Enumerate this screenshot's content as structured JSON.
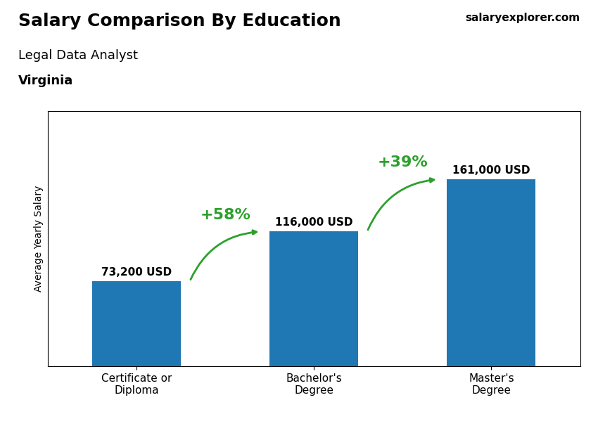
{
  "chart_data": {
    "type": "bar",
    "title": "Salary Comparison By Education",
    "subtitle": [
      "Legal Data Analyst",
      "Virginia"
    ],
    "source": "salaryexplorer.com",
    "y_label": "Average Yearly Salary",
    "categories": [
      "Certificate or\nDiploma",
      "Bachelor's\nDegree",
      "Master's\nDegree"
    ],
    "values": [
      73200,
      116000,
      161000
    ],
    "value_labels": [
      "73,200 USD",
      "116,000 USD",
      "161,000 USD"
    ],
    "data_labels": true,
    "annotations": [
      "+58%",
      "+39%"
    ],
    "ylim": [
      0,
      220000
    ],
    "tick_labels": "x",
    "grid": false
  }
}
